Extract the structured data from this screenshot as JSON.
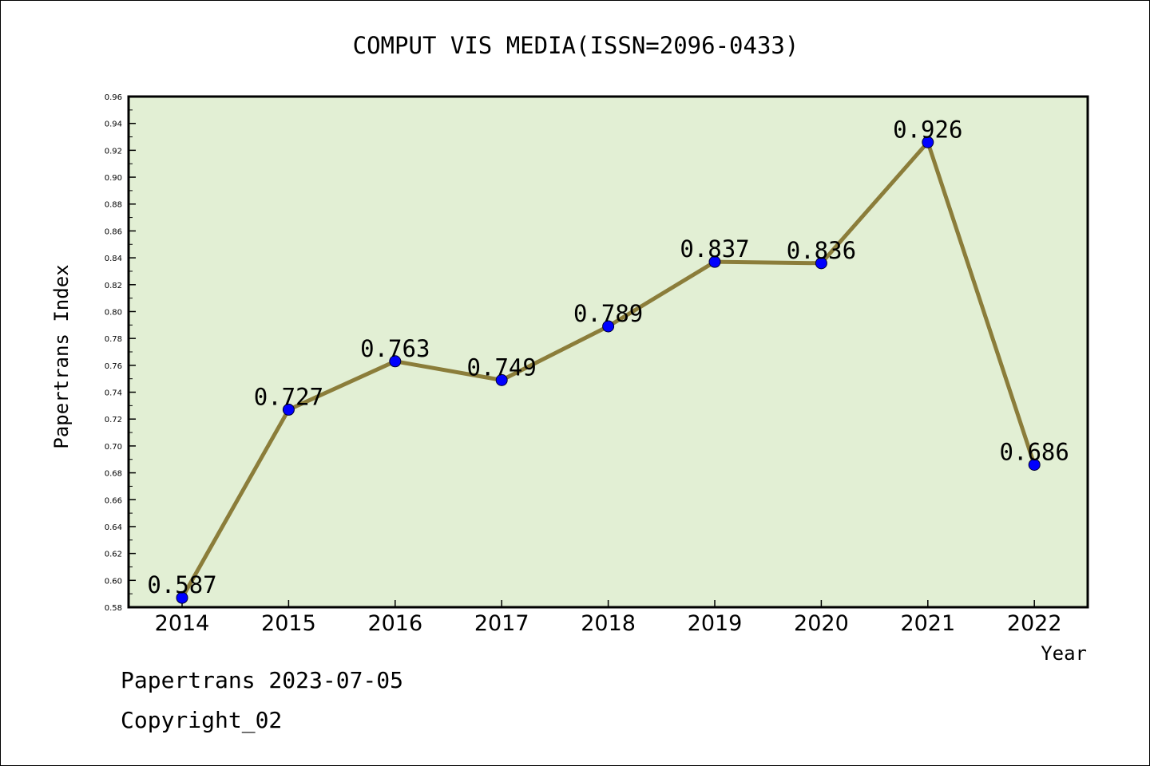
{
  "chart_data": {
    "type": "line",
    "title": "COMPUT VIS MEDIA(ISSN=2096-0433)",
    "xlabel": "Year",
    "ylabel": "Papertrans Index",
    "categories": [
      "2014",
      "2015",
      "2016",
      "2017",
      "2018",
      "2019",
      "2020",
      "2021",
      "2022"
    ],
    "series": [
      {
        "values": [
          0.587,
          0.727,
          0.763,
          0.749,
          0.789,
          0.837,
          0.836,
          0.926,
          0.686
        ]
      }
    ],
    "data_labels": [
      "0.587",
      "0.727",
      "0.763",
      "0.749",
      "0.789",
      "0.837",
      "0.836",
      "0.926",
      "0.686"
    ],
    "ylim": [
      0.58,
      0.96
    ],
    "yticks": [
      "0.58",
      "0.60",
      "0.62",
      "0.64",
      "0.66",
      "0.68",
      "0.70",
      "0.72",
      "0.74",
      "0.76",
      "0.78",
      "0.80",
      "0.82",
      "0.84",
      "0.86",
      "0.88",
      "0.90",
      "0.92",
      "0.94",
      "0.96"
    ],
    "grid": false,
    "colors": {
      "plot_background": "#e2efd4",
      "line": "#8b7d3a",
      "marker": "#0000ff"
    }
  },
  "footer": {
    "source_line": "Papertrans 2023-07-05",
    "copyright": "Copyright_02"
  }
}
